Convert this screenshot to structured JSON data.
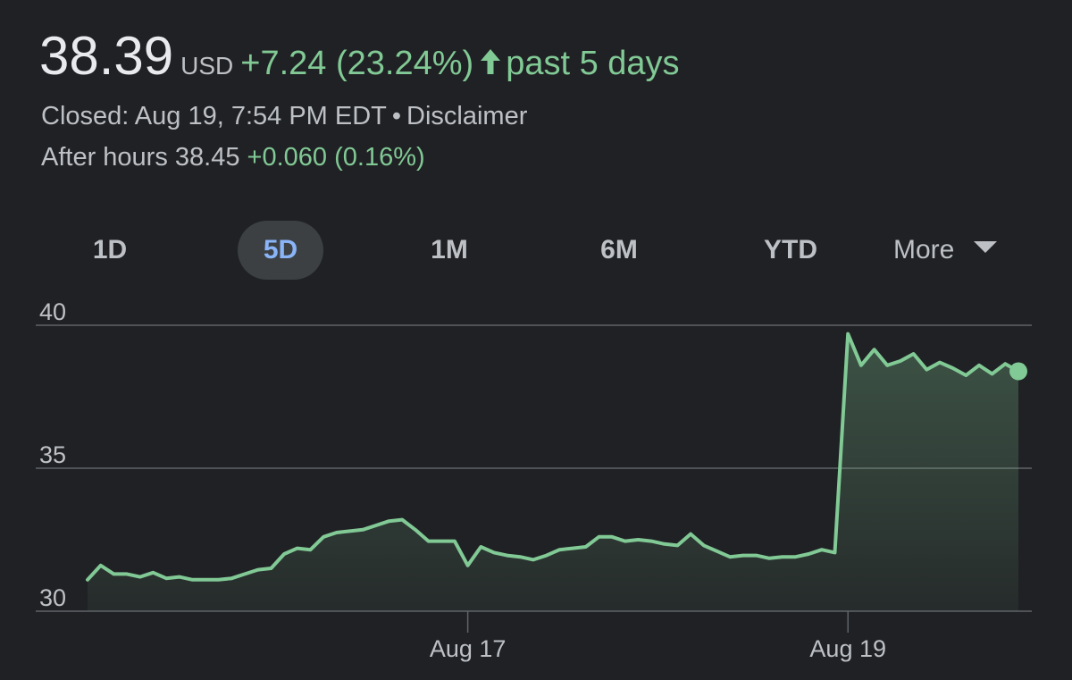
{
  "quote": {
    "price": "38.39",
    "currency": "USD",
    "change": "+7.24 (23.24%)",
    "period": "past 5 days",
    "closed_text": "Closed: Aug 19, 7:54 PM EDT",
    "separator": "•",
    "disclaimer": "Disclaimer",
    "after_hours_label": "After hours 38.45",
    "after_hours_change": "+0.060 (0.16%)"
  },
  "range_tabs": [
    "1D",
    "5D",
    "1M",
    "6M",
    "YTD"
  ],
  "active_range": "5D",
  "more_label": "More",
  "colors": {
    "background": "#202124",
    "line": "#81c995",
    "grid": "#5f6368",
    "text_muted": "#bdc1c6",
    "positive": "#81c995",
    "active_tab_bg": "#3c4043",
    "active_tab_text": "#8ab4f8"
  },
  "chart_data": {
    "type": "line",
    "title": "",
    "xlabel": "",
    "ylabel": "",
    "ylim": [
      30,
      40
    ],
    "yticks": [
      30,
      35,
      40
    ],
    "x_tick_labels": [
      "Aug 17",
      "Aug 19"
    ],
    "grid": true,
    "fill_below": true,
    "end_marker": true,
    "series": [
      {
        "values": [
          31.1,
          31.6,
          31.3,
          31.3,
          31.2,
          31.35,
          31.15,
          31.2,
          31.1,
          31.1,
          31.1,
          31.15,
          31.3,
          31.45,
          31.5,
          32.0,
          32.2,
          32.15,
          32.6,
          32.75,
          32.8,
          32.85,
          33.0,
          33.15,
          33.2,
          32.85,
          32.45,
          32.45,
          32.45,
          31.6,
          32.25,
          32.05,
          31.95,
          31.9,
          31.8,
          31.95,
          32.15,
          32.2,
          32.25,
          32.6,
          32.6,
          32.45,
          32.5,
          32.45,
          32.35,
          32.3,
          32.7,
          32.3,
          32.1,
          31.9,
          31.95,
          31.95,
          31.85,
          31.9,
          31.9,
          32.0,
          32.15,
          32.05,
          39.7,
          38.6,
          39.15,
          38.6,
          38.75,
          39.0,
          38.45,
          38.7,
          38.5,
          38.25,
          38.6,
          38.3,
          38.65,
          38.39
        ]
      }
    ],
    "date_boundaries": [
      {
        "label": "Aug 17",
        "index": 29
      },
      {
        "label": "Aug 19",
        "index": 58
      }
    ]
  }
}
